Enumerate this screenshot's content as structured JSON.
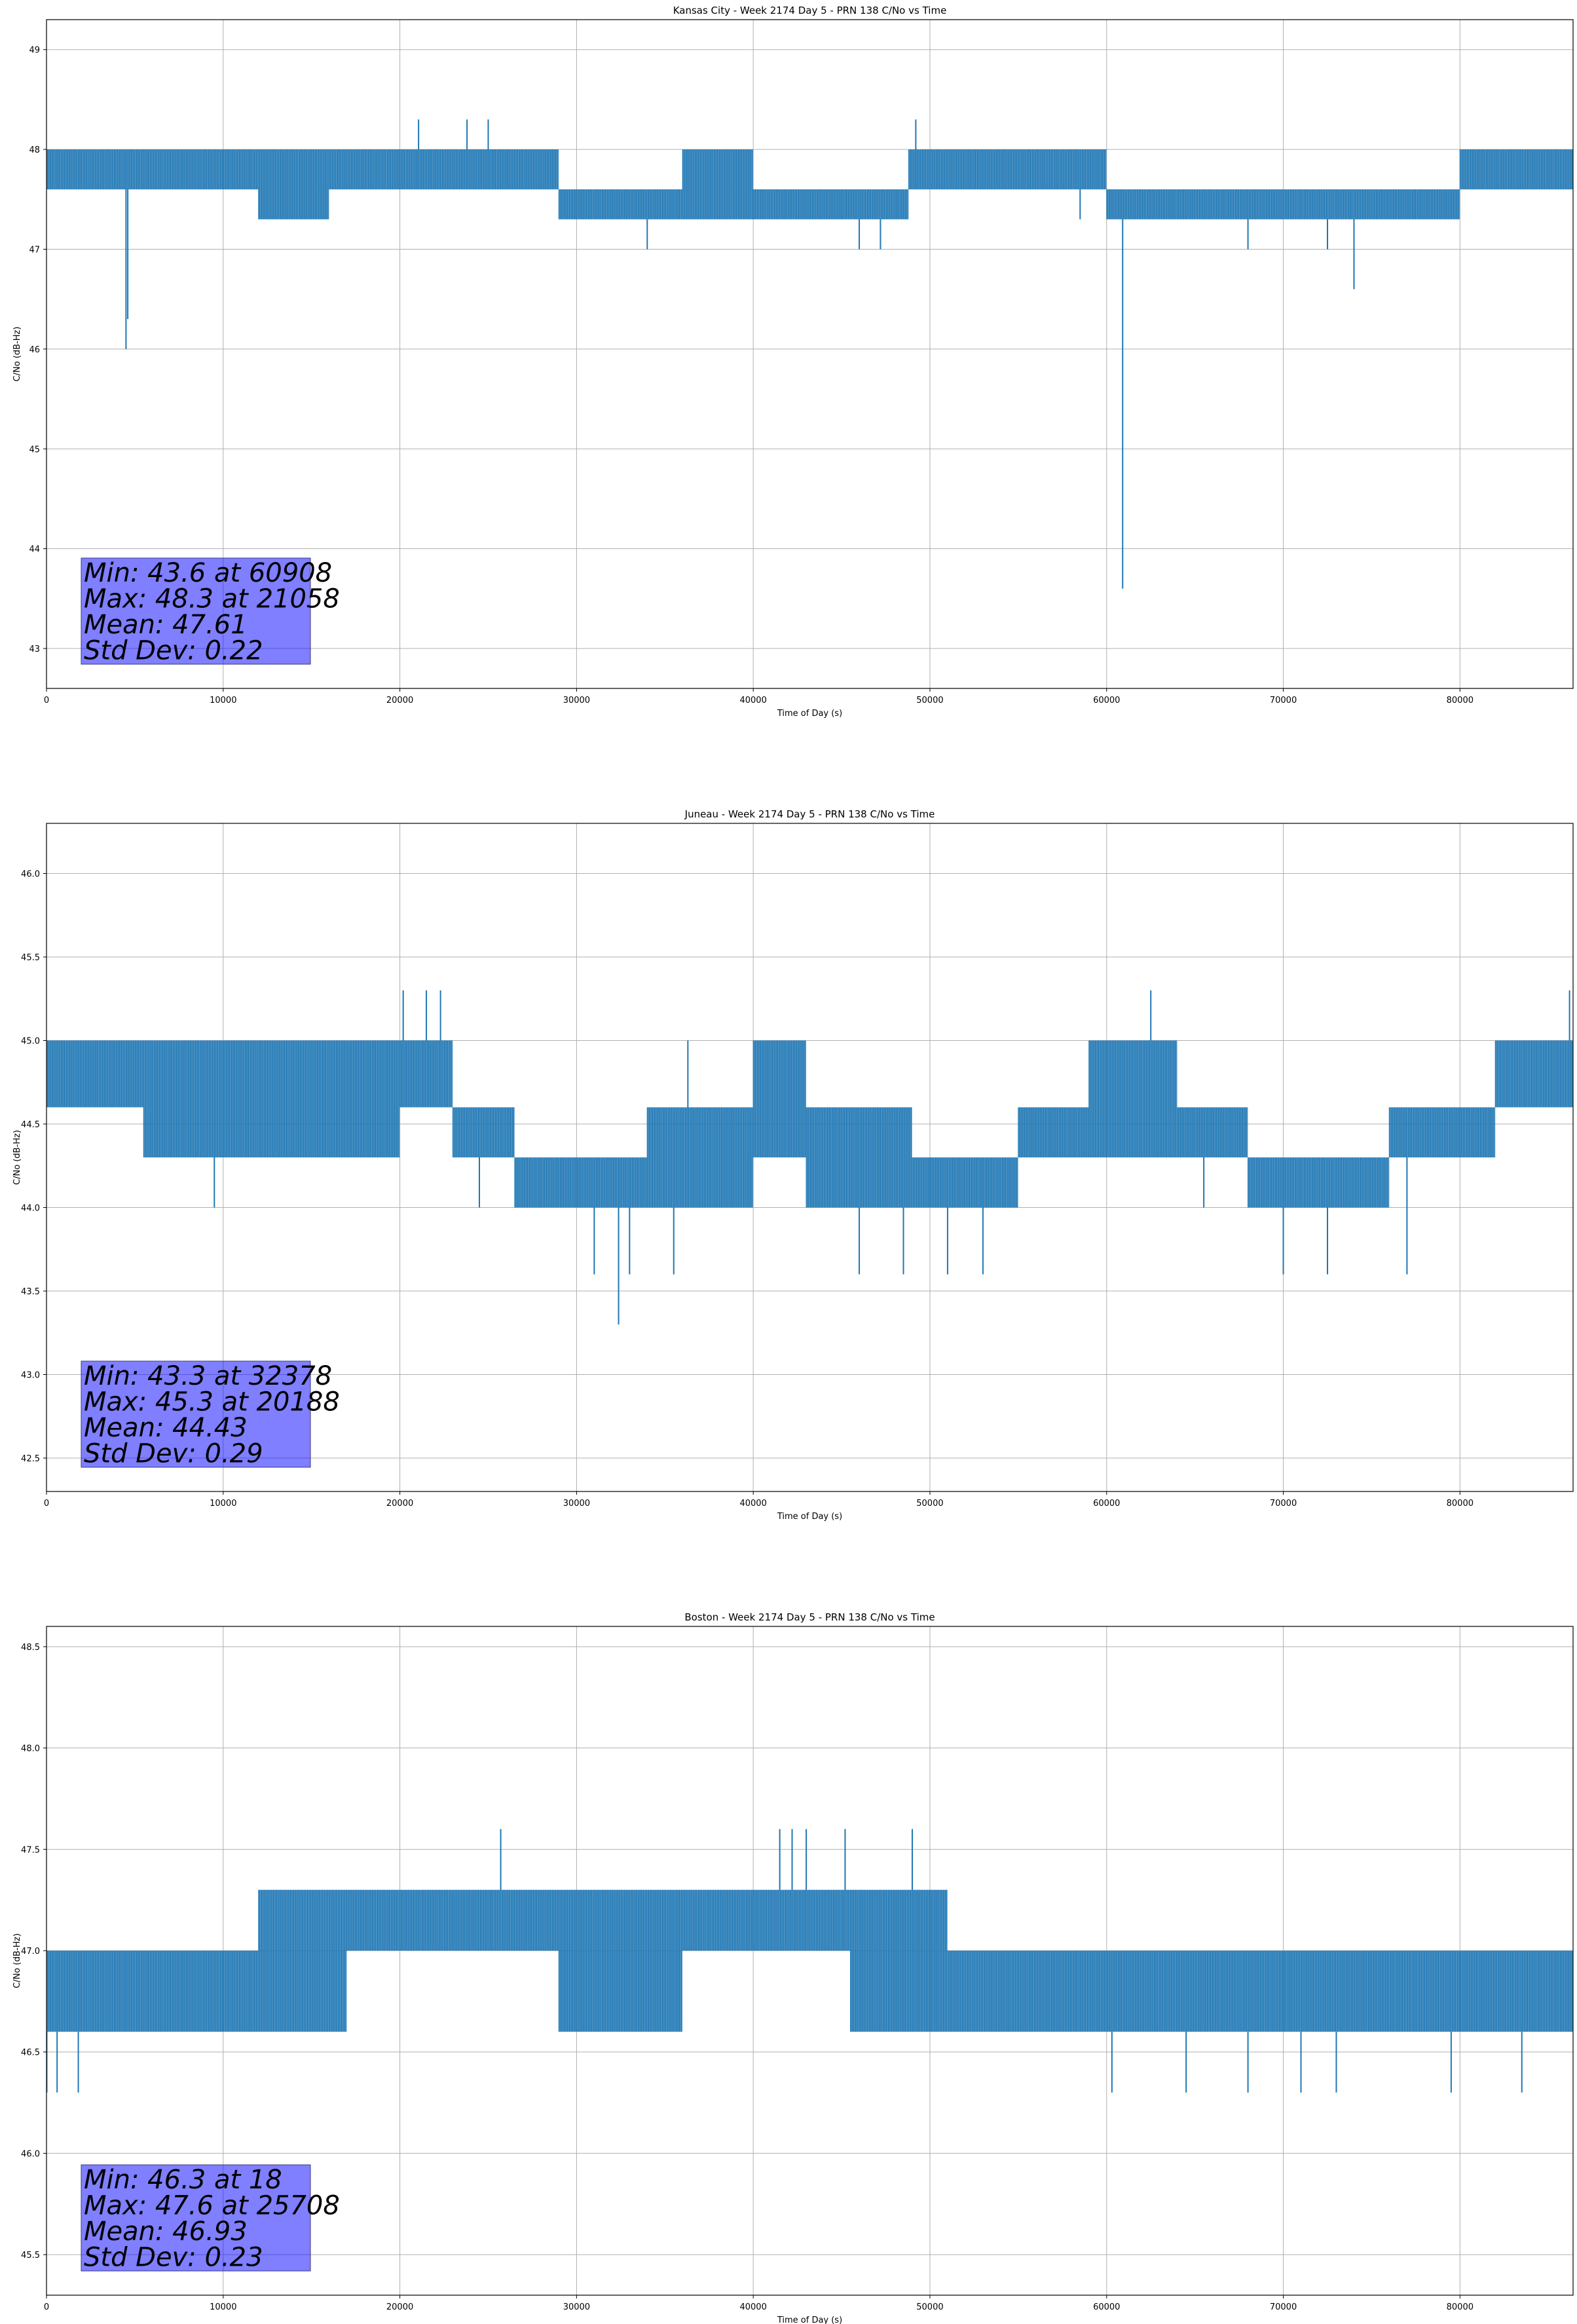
{
  "chart_data": [
    {
      "type": "line",
      "title": "Kansas City - Week 2174 Day 5 - PRN 138 C/No vs Time",
      "xlabel": "Time of Day (s)",
      "ylabel": "C/No (dB-Hz)",
      "xlim": [
        0,
        86400
      ],
      "ylim": [
        42.6,
        49.3
      ],
      "xticks": [
        0,
        10000,
        20000,
        30000,
        40000,
        50000,
        60000,
        70000,
        80000
      ],
      "yticks": [
        43,
        44,
        45,
        46,
        47,
        48,
        49
      ],
      "ytick_labels": [
        "43",
        "44",
        "45",
        "46",
        "47",
        "48",
        "49"
      ],
      "grid": true,
      "series": [
        {
          "color": "#1f77b4",
          "bands": [
            {
              "x": [
                0,
                12000
              ],
              "low": 47.6,
              "high": 48.0
            },
            {
              "x": [
                12000,
                16000
              ],
              "low": 47.3,
              "high": 48.0
            },
            {
              "x": [
                16000,
                29000
              ],
              "low": 47.6,
              "high": 48.0
            },
            {
              "x": [
                29000,
                36000
              ],
              "low": 47.3,
              "high": 47.6
            },
            {
              "x": [
                36000,
                40000
              ],
              "low": 47.3,
              "high": 48.0
            },
            {
              "x": [
                40000,
                48800
              ],
              "low": 47.3,
              "high": 47.6
            },
            {
              "x": [
                48800,
                60000
              ],
              "low": 47.6,
              "high": 48.0
            },
            {
              "x": [
                60000,
                64000
              ],
              "low": 47.3,
              "high": 47.6
            },
            {
              "x": [
                64000,
                80000
              ],
              "low": 47.3,
              "high": 47.6
            },
            {
              "x": [
                80000,
                86400
              ],
              "low": 47.6,
              "high": 48.0
            }
          ],
          "spikes": [
            {
              "x": 4500,
              "y": 46.0
            },
            {
              "x": 4600,
              "y": 46.3
            },
            {
              "x": 21058,
              "y": 48.3
            },
            {
              "x": 23800,
              "y": 48.3
            },
            {
              "x": 25000,
              "y": 48.3
            },
            {
              "x": 34000,
              "y": 47.0
            },
            {
              "x": 46000,
              "y": 47.0
            },
            {
              "x": 49200,
              "y": 48.3
            },
            {
              "x": 60908,
              "y": 43.6
            },
            {
              "x": 74000,
              "y": 46.6
            },
            {
              "x": 72500,
              "y": 47.0
            },
            {
              "x": 58500,
              "y": 47.3
            },
            {
              "x": 47200,
              "y": 47.0
            },
            {
              "x": 68000,
              "y": 47.0
            }
          ]
        }
      ],
      "stats": [
        "Min: 43.6 at 60908",
        "Max: 48.3 at 21058",
        "Mean: 47.61",
        "Std Dev: 0.22"
      ]
    },
    {
      "type": "line",
      "title": "Juneau - Week 2174 Day 5 - PRN 138 C/No vs Time",
      "xlabel": "Time of Day (s)",
      "ylabel": "C/No (dB-Hz)",
      "xlim": [
        0,
        86400
      ],
      "ylim": [
        42.3,
        46.3
      ],
      "xticks": [
        0,
        10000,
        20000,
        30000,
        40000,
        50000,
        60000,
        70000,
        80000
      ],
      "yticks": [
        42.5,
        43.0,
        43.5,
        44.0,
        44.5,
        45.0,
        45.5,
        46.0
      ],
      "ytick_labels": [
        "42.5",
        "43.0",
        "43.5",
        "44.0",
        "44.5",
        "45.0",
        "45.5",
        "46.0"
      ],
      "grid": true,
      "series": [
        {
          "color": "#1f77b4",
          "bands": [
            {
              "x": [
                0,
                5500
              ],
              "low": 44.6,
              "high": 45.0
            },
            {
              "x": [
                5500,
                20000
              ],
              "low": 44.3,
              "high": 45.0
            },
            {
              "x": [
                20000,
                23000
              ],
              "low": 44.6,
              "high": 45.0
            },
            {
              "x": [
                23000,
                26500
              ],
              "low": 44.3,
              "high": 44.6
            },
            {
              "x": [
                26500,
                34000
              ],
              "low": 44.0,
              "high": 44.3
            },
            {
              "x": [
                34000,
                40000
              ],
              "low": 44.0,
              "high": 44.6
            },
            {
              "x": [
                40000,
                43000
              ],
              "low": 44.3,
              "high": 45.0
            },
            {
              "x": [
                43000,
                49000
              ],
              "low": 44.0,
              "high": 44.6
            },
            {
              "x": [
                49000,
                55000
              ],
              "low": 44.0,
              "high": 44.3
            },
            {
              "x": [
                55000,
                59000
              ],
              "low": 44.3,
              "high": 44.6
            },
            {
              "x": [
                59000,
                64000
              ],
              "low": 44.3,
              "high": 45.0
            },
            {
              "x": [
                64000,
                68000
              ],
              "low": 44.3,
              "high": 44.6
            },
            {
              "x": [
                68000,
                76000
              ],
              "low": 44.0,
              "high": 44.3
            },
            {
              "x": [
                76000,
                82000
              ],
              "low": 44.3,
              "high": 44.6
            },
            {
              "x": [
                82000,
                86400
              ],
              "low": 44.6,
              "high": 45.0
            }
          ],
          "spikes": [
            {
              "x": 9500,
              "y": 44.0
            },
            {
              "x": 20188,
              "y": 45.3
            },
            {
              "x": 21500,
              "y": 45.3
            },
            {
              "x": 22300,
              "y": 45.3
            },
            {
              "x": 24500,
              "y": 44.0
            },
            {
              "x": 32378,
              "y": 43.3
            },
            {
              "x": 31000,
              "y": 43.6
            },
            {
              "x": 33000,
              "y": 43.6
            },
            {
              "x": 35500,
              "y": 43.6
            },
            {
              "x": 36300,
              "y": 45.0
            },
            {
              "x": 46000,
              "y": 43.6
            },
            {
              "x": 48500,
              "y": 43.6
            },
            {
              "x": 51000,
              "y": 43.6
            },
            {
              "x": 53000,
              "y": 43.6
            },
            {
              "x": 62500,
              "y": 45.3
            },
            {
              "x": 65500,
              "y": 44.0
            },
            {
              "x": 70000,
              "y": 43.6
            },
            {
              "x": 72500,
              "y": 43.6
            },
            {
              "x": 77000,
              "y": 43.6
            },
            {
              "x": 86200,
              "y": 45.3
            }
          ]
        }
      ],
      "stats": [
        "Min: 43.3 at 32378",
        "Max: 45.3 at 20188",
        "Mean: 44.43",
        "Std Dev: 0.29"
      ]
    },
    {
      "type": "line",
      "title": "Boston - Week 2174 Day 5 - PRN 138 C/No vs Time",
      "xlabel": "Time of Day (s)",
      "ylabel": "C/No (dB-Hz)",
      "xlim": [
        0,
        86400
      ],
      "ylim": [
        45.3,
        48.6
      ],
      "xticks": [
        0,
        10000,
        20000,
        30000,
        40000,
        50000,
        60000,
        70000,
        80000
      ],
      "yticks": [
        45.5,
        46.0,
        46.5,
        47.0,
        47.5,
        48.0,
        48.5
      ],
      "ytick_labels": [
        "45.5",
        "46.0",
        "46.5",
        "47.0",
        "47.5",
        "48.0",
        "48.5"
      ],
      "grid": true,
      "series": [
        {
          "color": "#1f77b4",
          "bands": [
            {
              "x": [
                0,
                12000
              ],
              "low": 46.6,
              "high": 47.0
            },
            {
              "x": [
                12000,
                17000
              ],
              "low": 46.6,
              "high": 47.3
            },
            {
              "x": [
                17000,
                29000
              ],
              "low": 47.0,
              "high": 47.3
            },
            {
              "x": [
                29000,
                36000
              ],
              "low": 46.6,
              "high": 47.3
            },
            {
              "x": [
                36000,
                45500
              ],
              "low": 47.0,
              "high": 47.3
            },
            {
              "x": [
                45500,
                51000
              ],
              "low": 46.6,
              "high": 47.3
            },
            {
              "x": [
                51000,
                86400
              ],
              "low": 46.6,
              "high": 47.0
            }
          ],
          "spikes": [
            {
              "x": 18,
              "y": 46.3
            },
            {
              "x": 600,
              "y": 46.3
            },
            {
              "x": 1800,
              "y": 46.3
            },
            {
              "x": 25708,
              "y": 47.6
            },
            {
              "x": 41500,
              "y": 47.6
            },
            {
              "x": 42200,
              "y": 47.6
            },
            {
              "x": 43000,
              "y": 47.6
            },
            {
              "x": 45200,
              "y": 47.6
            },
            {
              "x": 49000,
              "y": 47.6
            },
            {
              "x": 60300,
              "y": 46.3
            },
            {
              "x": 64500,
              "y": 46.3
            },
            {
              "x": 68000,
              "y": 46.3
            },
            {
              "x": 71000,
              "y": 46.3
            },
            {
              "x": 73000,
              "y": 46.3
            },
            {
              "x": 79500,
              "y": 46.3
            },
            {
              "x": 83500,
              "y": 46.3
            }
          ]
        }
      ],
      "stats": [
        "Min: 46.3 at 18",
        "Max: 47.6 at 25708",
        "Mean: 46.93",
        "Std Dev: 0.23"
      ]
    }
  ]
}
